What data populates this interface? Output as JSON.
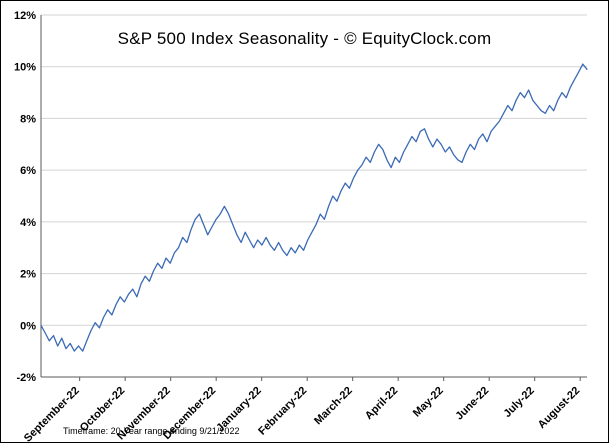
{
  "title": "S&P 500 Index Seasonality - © EquityClock.com",
  "footnote": "Timeframe: 20-Year range ending 9/21/2022",
  "colors": {
    "line": "#3b6ab5",
    "grid": "#d3d3d3",
    "axis": "#595959",
    "text": "#000000",
    "background": "#ffffff"
  },
  "chart_data": {
    "type": "line",
    "title": "S&P 500 Index Seasonality - © EquityClock.com",
    "xlabel": "",
    "ylabel": "",
    "ylim": [
      -2,
      12
    ],
    "y_tick_step": 2,
    "y_tick_labels": [
      "-2%",
      "0%",
      "2%",
      "4%",
      "6%",
      "8%",
      "10%",
      "12%"
    ],
    "y_tick_values": [
      -2,
      0,
      2,
      4,
      6,
      8,
      10,
      12
    ],
    "grid": "horizontal",
    "legend": "none",
    "x_tick_labels": [
      "September-22",
      "October-22",
      "November-22",
      "December-22",
      "January-22",
      "February-22",
      "March-22",
      "April-22",
      "May-22",
      "June-22",
      "July-22",
      "August-22"
    ],
    "points_per_month": 11,
    "values": [
      0.0,
      -0.3,
      -0.6,
      -0.4,
      -0.8,
      -0.5,
      -0.9,
      -0.7,
      -1.0,
      -0.8,
      -1.0,
      -0.6,
      -0.2,
      0.1,
      -0.1,
      0.3,
      0.6,
      0.4,
      0.8,
      1.1,
      0.9,
      1.2,
      1.4,
      1.1,
      1.6,
      1.9,
      1.7,
      2.1,
      2.4,
      2.2,
      2.6,
      2.4,
      2.8,
      3.0,
      3.4,
      3.2,
      3.7,
      4.1,
      4.3,
      3.9,
      3.5,
      3.8,
      4.1,
      4.3,
      4.6,
      4.3,
      3.9,
      3.5,
      3.2,
      3.6,
      3.3,
      3.0,
      3.3,
      3.1,
      3.4,
      3.1,
      2.9,
      3.2,
      2.9,
      2.7,
      3.0,
      2.8,
      3.1,
      2.9,
      3.3,
      3.6,
      3.9,
      4.3,
      4.1,
      4.6,
      5.0,
      4.8,
      5.2,
      5.5,
      5.3,
      5.7,
      6.0,
      6.2,
      6.5,
      6.3,
      6.7,
      7.0,
      6.8,
      6.4,
      6.1,
      6.5,
      6.3,
      6.7,
      7.0,
      7.3,
      7.1,
      7.5,
      7.6,
      7.2,
      6.9,
      7.2,
      7.0,
      6.7,
      6.9,
      6.6,
      6.4,
      6.3,
      6.7,
      7.0,
      6.8,
      7.2,
      7.4,
      7.1,
      7.5,
      7.7,
      7.9,
      8.2,
      8.5,
      8.3,
      8.7,
      9.0,
      8.8,
      9.1,
      8.7,
      8.5,
      8.3,
      8.2,
      8.5,
      8.3,
      8.7,
      9.0,
      8.8,
      9.2,
      9.5,
      9.8,
      10.1,
      9.9
    ]
  }
}
